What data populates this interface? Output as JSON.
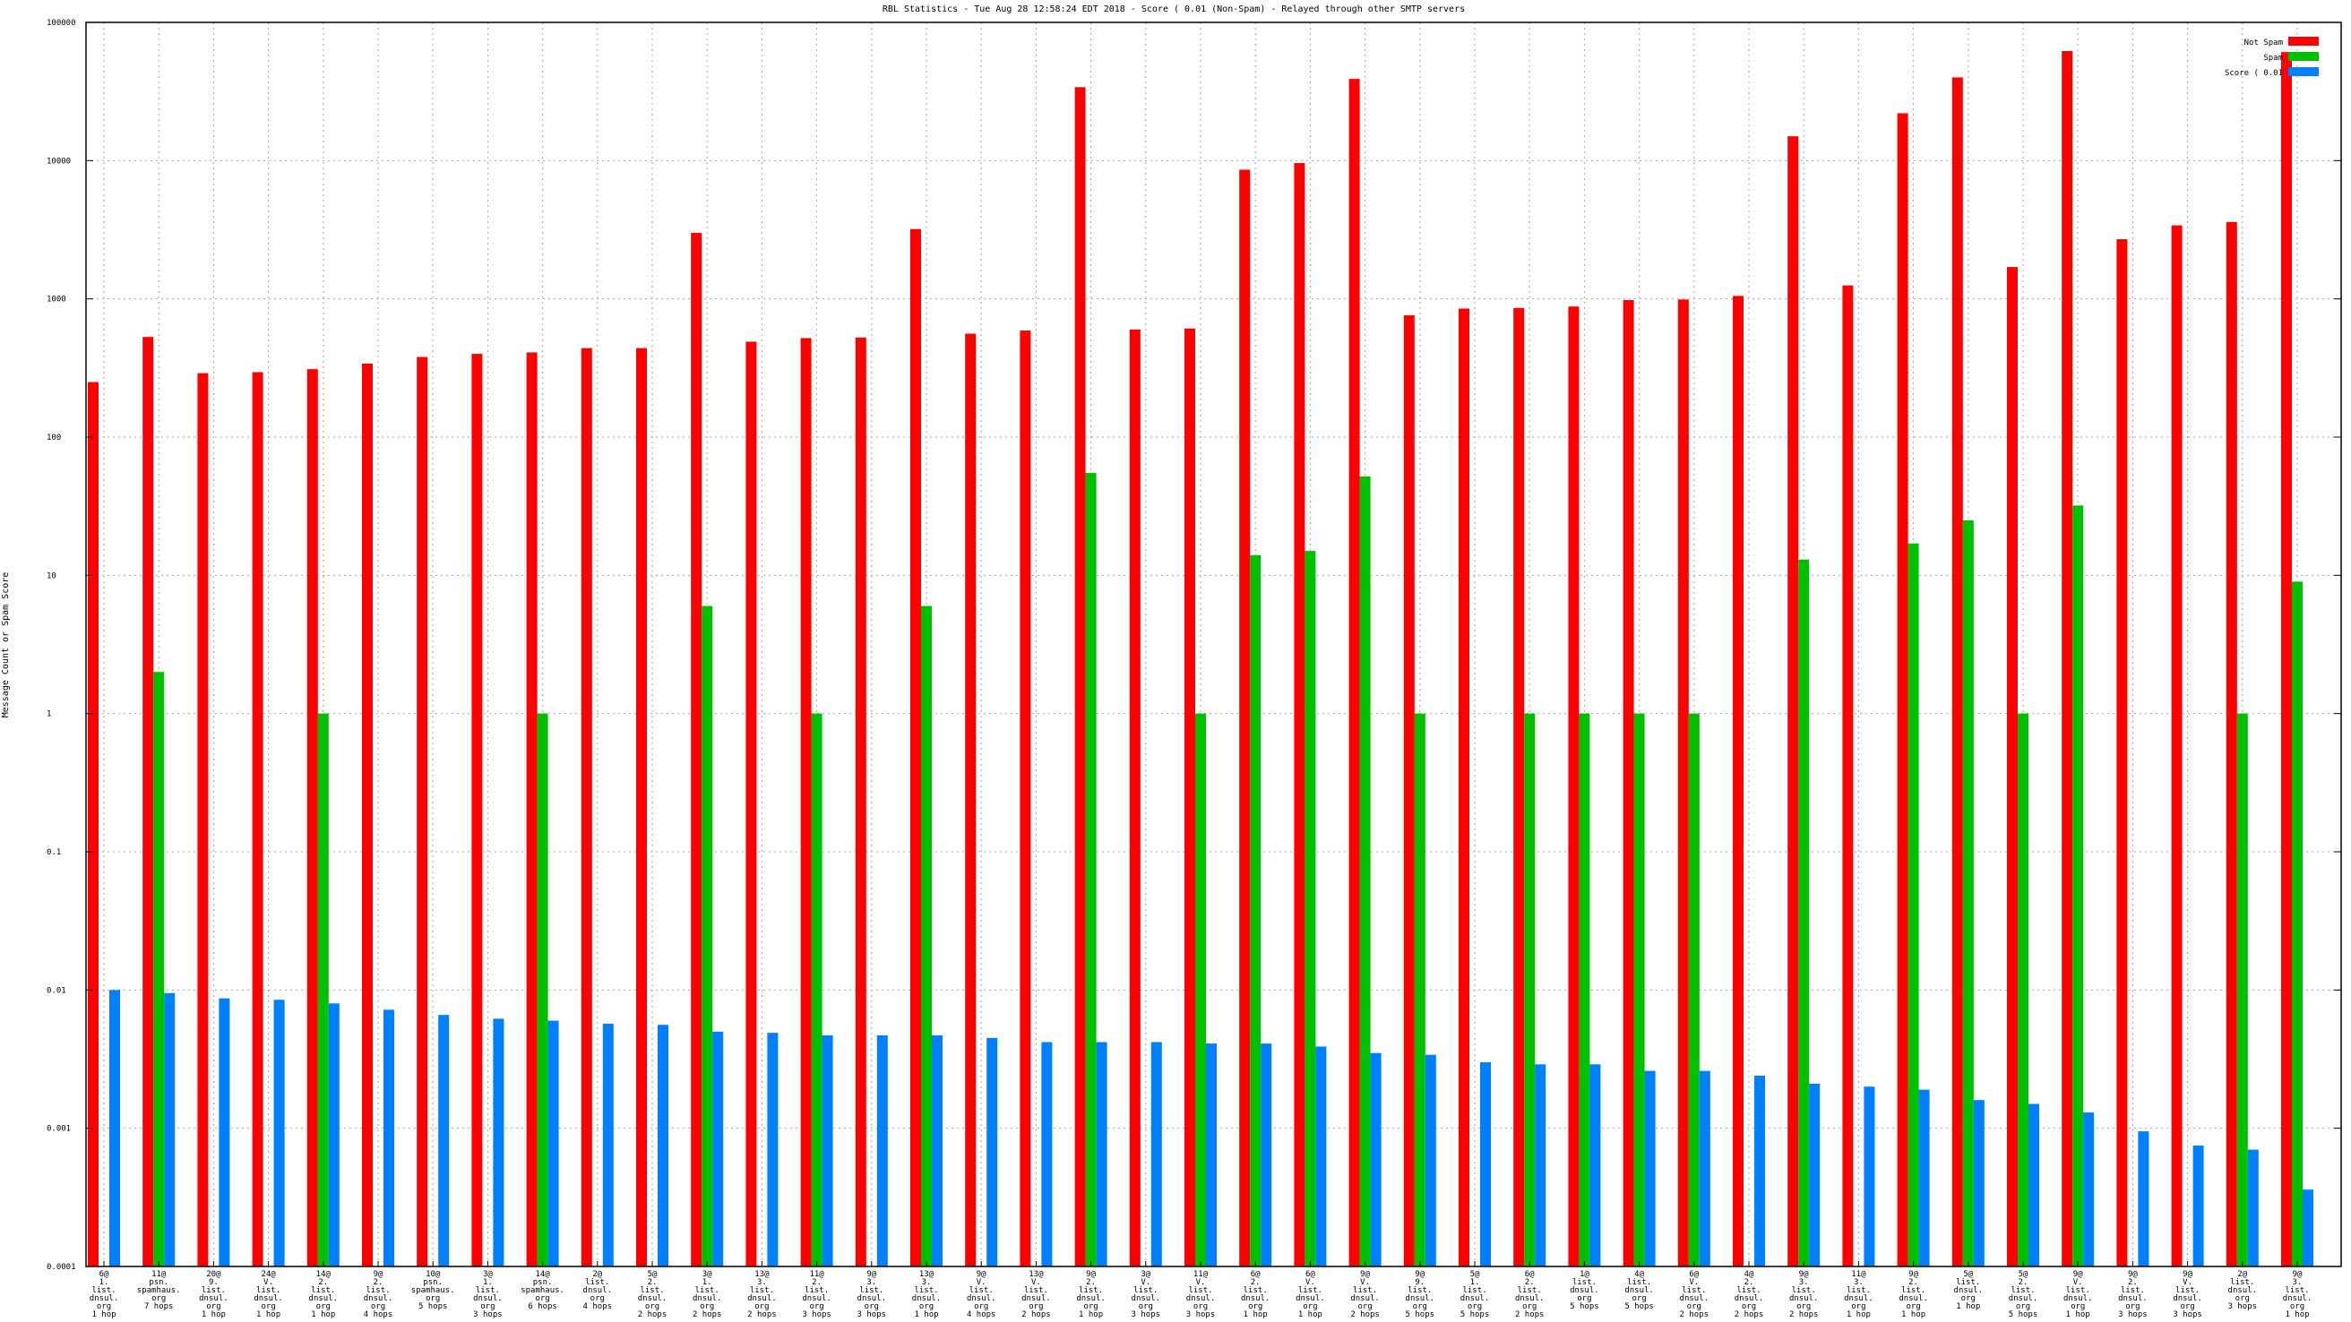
{
  "chart_data": {
    "type": "bar",
    "title": "RBL Statistics - Tue Aug 28 12:58:24 EDT 2018 - Score ( 0.01 (Non-Spam) - Relayed through other SMTP servers",
    "ylabel": "Message Count or Spam Score",
    "xlabel": "",
    "yscale": "log",
    "ylim": [
      0.0001,
      100000
    ],
    "yticks": [
      "0.0001",
      "0.001",
      "0.01",
      "0.1",
      "1",
      "10",
      "100",
      "1000",
      "10000",
      "100000"
    ],
    "grid": true,
    "legend_position": "top-right",
    "categories": [
      [
        "6@",
        "1.",
        "list.",
        "dnsul.",
        "org",
        "1 hop"
      ],
      [
        "11@",
        "psn.",
        "spamhaus.",
        "org",
        "7 hops"
      ],
      [
        "20@",
        "9.",
        "list.",
        "dnsul.",
        "org",
        "1 hop"
      ],
      [
        "24@",
        "V.",
        "list.",
        "dnsul.",
        "org",
        "1 hop"
      ],
      [
        "14@",
        "2.",
        "list.",
        "dnsul.",
        "org",
        "1 hop"
      ],
      [
        "9@",
        "2.",
        "list.",
        "dnsul.",
        "org",
        "4 hops"
      ],
      [
        "10@",
        "psn.",
        "spamhaus.",
        "org",
        "5 hops"
      ],
      [
        "3@",
        "1.",
        "list.",
        "dnsul.",
        "org",
        "3 hops"
      ],
      [
        "14@",
        "psn.",
        "spamhaus.",
        "org",
        "6 hops"
      ],
      [
        "2@",
        "list.",
        "dnsul.",
        "org",
        "4 hops"
      ],
      [
        "5@",
        "2.",
        "list.",
        "dnsul.",
        "org",
        "2 hops"
      ],
      [
        "3@",
        "1.",
        "list.",
        "dnsul.",
        "org",
        "2 hops"
      ],
      [
        "13@",
        "3.",
        "list.",
        "dnsul.",
        "org",
        "2 hops"
      ],
      [
        "11@",
        "2.",
        "list.",
        "dnsul.",
        "org",
        "3 hops"
      ],
      [
        "9@",
        "3.",
        "list.",
        "dnsul.",
        "org",
        "3 hops"
      ],
      [
        "13@",
        "3.",
        "list.",
        "dnsul.",
        "org",
        "1 hop"
      ],
      [
        "9@",
        "V.",
        "list.",
        "dnsul.",
        "org",
        "4 hops"
      ],
      [
        "13@",
        "V.",
        "list.",
        "dnsul.",
        "org",
        "2 hops"
      ],
      [
        "9@",
        "2.",
        "list.",
        "dnsul.",
        "org",
        "1 hop"
      ],
      [
        "3@",
        "V.",
        "list.",
        "dnsul.",
        "org",
        "3 hops"
      ],
      [
        "11@",
        "V.",
        "list.",
        "dnsul.",
        "org",
        "3 hops"
      ],
      [
        "6@",
        "2.",
        "list.",
        "dnsul.",
        "org",
        "1 hop"
      ],
      [
        "6@",
        "V.",
        "list.",
        "dnsul.",
        "org",
        "1 hop"
      ],
      [
        "9@",
        "V.",
        "list.",
        "dnsul.",
        "org",
        "2 hops"
      ],
      [
        "9@",
        "9.",
        "list.",
        "dnsul.",
        "org",
        "5 hops"
      ],
      [
        "5@",
        "1.",
        "list.",
        "dnsul.",
        "org",
        "5 hops"
      ],
      [
        "6@",
        "2.",
        "list.",
        "dnsul.",
        "org",
        "2 hops"
      ],
      [
        "1@",
        "list.",
        "dnsul.",
        "org",
        "5 hops"
      ],
      [
        "4@",
        "list.",
        "dnsul.",
        "org",
        "5 hops"
      ],
      [
        "6@",
        "V.",
        "list.",
        "dnsul.",
        "org",
        "2 hops"
      ],
      [
        "4@",
        "2.",
        "list.",
        "dnsul.",
        "org",
        "2 hops"
      ],
      [
        "9@",
        "3.",
        "list.",
        "dnsul.",
        "org",
        "2 hops"
      ],
      [
        "11@",
        "3.",
        "list.",
        "dnsul.",
        "org",
        "1 hop"
      ],
      [
        "9@",
        "2.",
        "list.",
        "dnsul.",
        "org",
        "1 hop"
      ],
      [
        "5@",
        "list.",
        "dnsul.",
        "org",
        "1 hop"
      ],
      [
        "5@",
        "2.",
        "list.",
        "dnsul.",
        "org",
        "5 hops"
      ],
      [
        "9@",
        "V.",
        "list.",
        "dnsul.",
        "org",
        "1 hop"
      ],
      [
        "9@",
        "2.",
        "list.",
        "dnsul.",
        "org",
        "3 hops"
      ],
      [
        "9@",
        "V.",
        "list.",
        "dnsul.",
        "org",
        "3 hops"
      ],
      [
        "2@",
        "list.",
        "dnsul.",
        "org",
        "3 hops"
      ],
      [
        "9@",
        "3.",
        "list.",
        "dnsul.",
        "org",
        "1 hop"
      ]
    ],
    "series": [
      {
        "name": "Not Spam",
        "color": "#ff0000",
        "values": [
          250,
          530,
          290,
          295,
          310,
          340,
          380,
          400,
          410,
          440,
          440,
          3000,
          490,
          520,
          525,
          3200,
          560,
          590,
          34000,
          600,
          610,
          8600,
          9600,
          39000,
          760,
          850,
          860,
          880,
          980,
          990,
          1050,
          15000,
          1250,
          22000,
          40000,
          1700,
          62000,
          2700,
          3400,
          3600,
          61000
        ]
      },
      {
        "name": "Spam",
        "color": "#00c000",
        "values": [
          null,
          2,
          null,
          null,
          1,
          null,
          null,
          null,
          1,
          null,
          null,
          6,
          null,
          1,
          null,
          6,
          null,
          null,
          55,
          null,
          1,
          14,
          15,
          52,
          1,
          null,
          1,
          1,
          1,
          1,
          null,
          13,
          null,
          17,
          25,
          1,
          32,
          null,
          null,
          1,
          9
        ]
      },
      {
        "name": "Score ( 0.01",
        "color": "#0080ff",
        "values": [
          0.01,
          0.0095,
          0.0087,
          0.0085,
          0.008,
          0.0072,
          0.0066,
          0.0062,
          0.006,
          0.0057,
          0.0056,
          0.005,
          0.0049,
          0.0047,
          0.0047,
          0.0047,
          0.0045,
          0.0042,
          0.0042,
          0.0042,
          0.0041,
          0.0041,
          0.0039,
          0.0035,
          0.0034,
          0.003,
          0.0029,
          0.0029,
          0.0026,
          0.0026,
          0.0024,
          0.0021,
          0.002,
          0.0019,
          0.0016,
          0.0015,
          0.0013,
          0.00095,
          0.00075,
          0.0007,
          0.00036
        ]
      }
    ]
  }
}
